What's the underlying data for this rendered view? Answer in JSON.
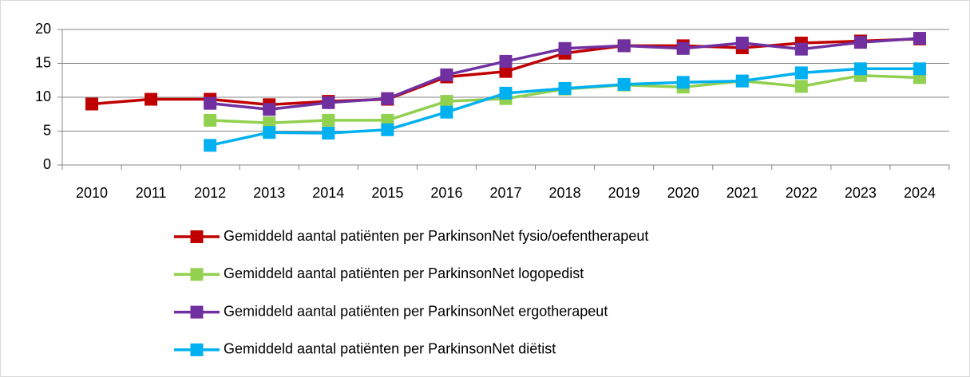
{
  "chart_data": {
    "type": "line",
    "categories": [
      "2010",
      "2011",
      "2012",
      "2013",
      "2014",
      "2015",
      "2016",
      "2017",
      "2018",
      "2019",
      "2020",
      "2021",
      "2022",
      "2023",
      "2024"
    ],
    "series": [
      {
        "name": "Gemiddeld aantal patiënten per ParkinsonNet fysio/oefentherapeut",
        "color": "#c00000",
        "values": [
          9.0,
          9.7,
          9.7,
          8.9,
          9.4,
          9.7,
          13.0,
          13.8,
          16.5,
          17.6,
          17.6,
          17.3,
          18.0,
          18.3,
          18.6
        ]
      },
      {
        "name": "Gemiddeld aantal patiënten per ParkinsonNet logopedist",
        "color": "#92d050",
        "values": [
          null,
          null,
          6.6,
          6.2,
          6.6,
          6.6,
          9.4,
          9.8,
          11.2,
          11.8,
          11.5,
          12.4,
          11.6,
          13.2,
          12.9
        ]
      },
      {
        "name": "Gemiddeld aantal patiënten per ParkinsonNet ergotherapeut",
        "color": "#7030a0",
        "values": [
          null,
          null,
          9.1,
          8.2,
          9.2,
          9.8,
          13.3,
          15.3,
          17.2,
          17.6,
          17.2,
          18.0,
          17.1,
          18.1,
          18.7
        ]
      },
      {
        "name": "Gemiddeld aantal patiënten per ParkinsonNet diëtist",
        "color": "#00b0f0",
        "values": [
          null,
          null,
          2.9,
          4.8,
          4.7,
          5.2,
          7.8,
          10.6,
          11.3,
          11.9,
          12.2,
          12.4,
          13.6,
          14.2,
          14.2
        ]
      }
    ],
    "ylim": [
      0,
      20
    ],
    "yticks": [
      0,
      5,
      10,
      15,
      20
    ],
    "grid": true,
    "legend": "bottom"
  }
}
